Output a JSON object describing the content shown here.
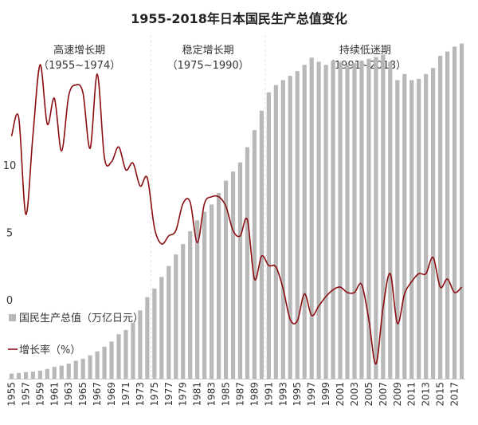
{
  "chart_data": {
    "type": "bar+line",
    "title": "1955-2018年日本国民生产总值变化",
    "periods": [
      {
        "label": "高速增长期",
        "range": "（1955~1974）",
        "start": 1955,
        "end": 1974
      },
      {
        "label": "稳定增长期",
        "range": "（1975~1990）",
        "start": 1975,
        "end": 1990
      },
      {
        "label": "持续低迷期",
        "range": "（1991~2018）",
        "start": 1991,
        "end": 2018
      }
    ],
    "x_tick_labels": [
      "1955",
      "1957",
      "1959",
      "1961",
      "1963",
      "1965",
      "1967",
      "1969",
      "1971",
      "1973",
      "1975",
      "1977",
      "1979",
      "1981",
      "1983",
      "1985",
      "1987",
      "1989",
      "1991",
      "1993",
      "1995",
      "1997",
      "1999",
      "2001",
      "2003",
      "2005",
      "2007",
      "2009",
      "2011",
      "2013",
      "2015",
      "2017"
    ],
    "y_ticks": [
      0,
      5,
      10
    ],
    "ylim_rate": [
      -5.8,
      19.7
    ],
    "legend": {
      "position": "left-middle",
      "bar_label": "国民生产总值（万亿日元）",
      "line_label": "增长率（%）"
    },
    "colors": {
      "bar": "#b8b8b8",
      "line": "#8b0d12",
      "grid": "#e3e3e3",
      "text": "#333333"
    },
    "years": [
      1955,
      1956,
      1957,
      1958,
      1959,
      1960,
      1961,
      1962,
      1963,
      1964,
      1965,
      1966,
      1967,
      1968,
      1969,
      1970,
      1971,
      1972,
      1973,
      1974,
      1975,
      1976,
      1977,
      1978,
      1979,
      1980,
      1981,
      1982,
      1983,
      1984,
      1985,
      1986,
      1987,
      1988,
      1989,
      1990,
      1991,
      1992,
      1993,
      1994,
      1995,
      1996,
      1997,
      1998,
      1999,
      2000,
      2001,
      2002,
      2003,
      2004,
      2005,
      2006,
      2007,
      2008,
      2009,
      2010,
      2011,
      2012,
      2013,
      2014,
      2015,
      2016,
      2017,
      2018
    ],
    "series": [
      {
        "name": "国民生产总值（万亿日元）",
        "type": "bar",
        "values": [
          8.5,
          9.5,
          11,
          11.7,
          13.3,
          16,
          19.5,
          21.5,
          25,
          29.5,
          32.8,
          38.5,
          45,
          52.5,
          61,
          73,
          80,
          92,
          112,
          134,
          148,
          167,
          185,
          204,
          221,
          242,
          260,
          274,
          286,
          305,
          325,
          340,
          355,
          380,
          408,
          440,
          470,
          482,
          490,
          497,
          505,
          515,
          527,
          520,
          515,
          522,
          520,
          515,
          518,
          522,
          525,
          528,
          532,
          520,
          490,
          500,
          490,
          492,
          500,
          510,
          530,
          537,
          545,
          550
        ]
      },
      {
        "name": "增长率（%）",
        "type": "line",
        "values": [
          12.2,
          13.6,
          6.4,
          12.3,
          17.5,
          13.1,
          15.0,
          11.1,
          15.2,
          16.0,
          15.4,
          11.3,
          16.8,
          10.6,
          10.3,
          11.4,
          9.7,
          10.2,
          8.5,
          9.1,
          5.4,
          4.2,
          4.8,
          5.2,
          7.2,
          7.3,
          4.3,
          7.2,
          7.7,
          7.7,
          7.0,
          5.2,
          4.8,
          6.0,
          1.6,
          3.3,
          2.6,
          2.5,
          0.9,
          -1.4,
          -1.5,
          0.5,
          -1.1,
          -0.4,
          0.3,
          0.8,
          1.0,
          0.6,
          0.6,
          1.2,
          -1.4,
          -4.7,
          -0.5,
          2.0,
          -1.7,
          0.5,
          1.4,
          2.0,
          2.0,
          3.2,
          1.0,
          1.6,
          0.6,
          1.0
        ]
      }
    ]
  }
}
